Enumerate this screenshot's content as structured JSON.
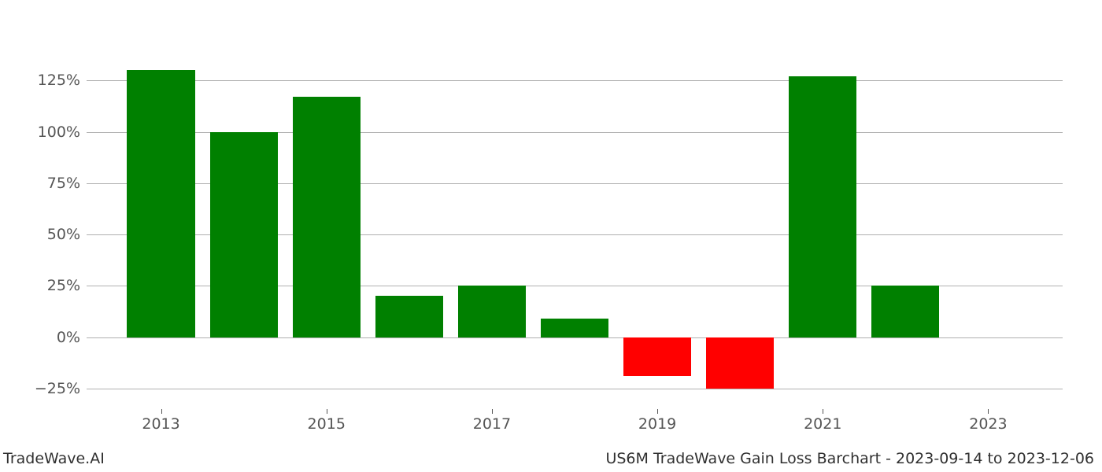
{
  "chart": {
    "type": "bar",
    "background_color": "#ffffff",
    "grid_color": "#b0b0b0",
    "tick_label_color": "#555555",
    "tick_label_fontsize": 19,
    "footer_fontsize": 19,
    "footer_color": "#303030",
    "positive_color": "#008000",
    "negative_color": "#ff0000",
    "ylim": [
      -35,
      145
    ],
    "ytick_values": [
      -25,
      0,
      25,
      50,
      75,
      100,
      125
    ],
    "ytick_labels": [
      "−25%",
      "0%",
      "25%",
      "50%",
      "75%",
      "100%",
      "125%"
    ],
    "x_axis_range": [
      2012.1,
      2023.9
    ],
    "xtick_values": [
      2013,
      2015,
      2017,
      2019,
      2021,
      2023
    ],
    "xtick_labels": [
      "2013",
      "2015",
      "2017",
      "2019",
      "2021",
      "2023"
    ],
    "bar_width_years": 0.82,
    "bars": [
      {
        "x": 2013,
        "value": 130
      },
      {
        "x": 2014,
        "value": 100
      },
      {
        "x": 2015,
        "value": 117
      },
      {
        "x": 2016,
        "value": 20
      },
      {
        "x": 2017,
        "value": 25
      },
      {
        "x": 2018,
        "value": 9
      },
      {
        "x": 2019,
        "value": -19
      },
      {
        "x": 2020,
        "value": -25
      },
      {
        "x": 2021,
        "value": 127
      },
      {
        "x": 2022,
        "value": 25
      }
    ]
  },
  "footer": {
    "left": "TradeWave.AI",
    "right": "US6M TradeWave Gain Loss Barchart - 2023-09-14 to 2023-12-06"
  }
}
